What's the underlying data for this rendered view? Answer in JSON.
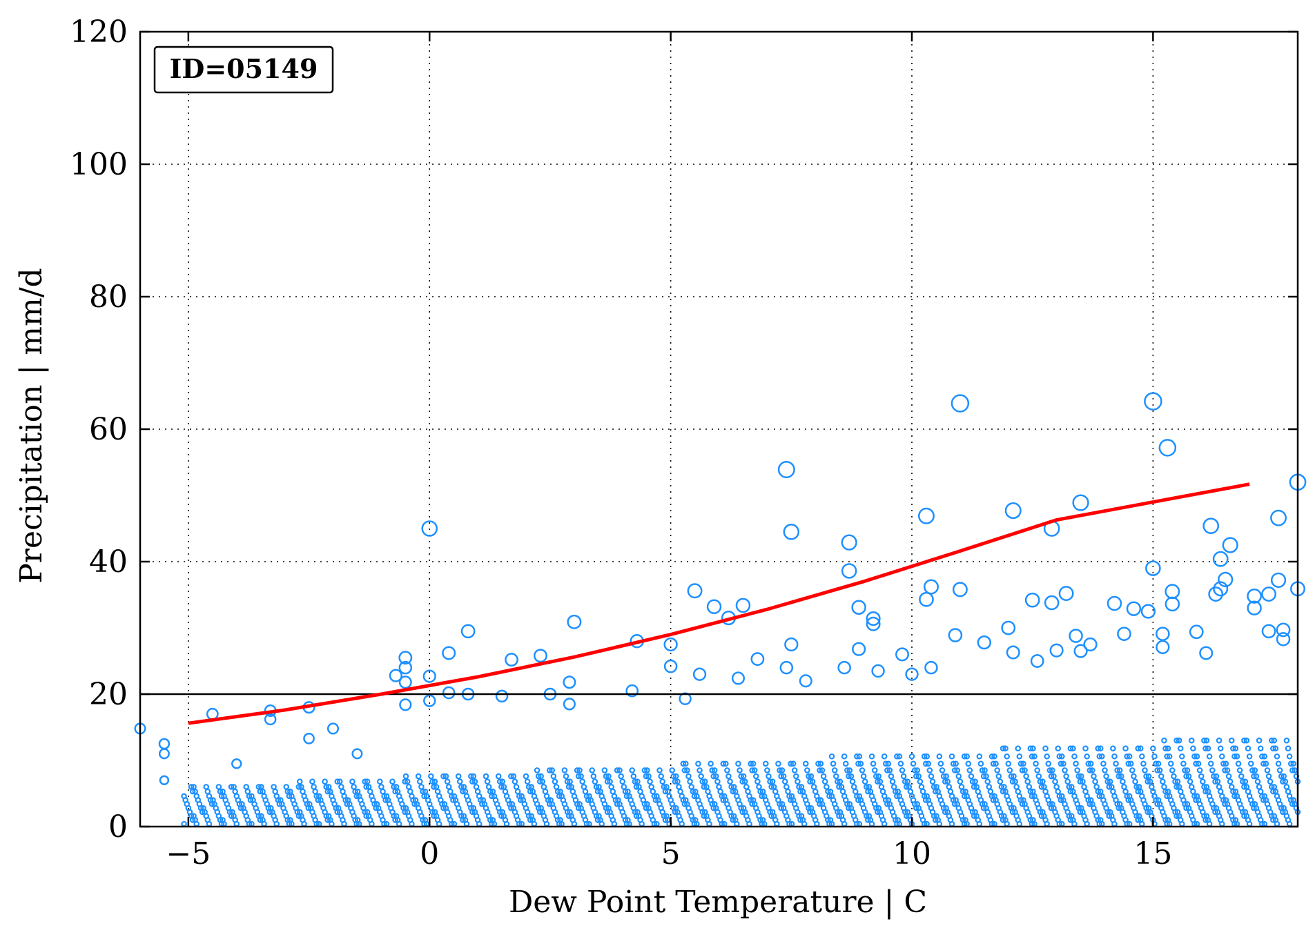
{
  "chart_data": {
    "type": "scatter",
    "annotation": "ID=05149",
    "xlabel": "Dew Point Temperature | C",
    "ylabel": "Precipitation | mm/d",
    "xlim": [
      -6,
      18
    ],
    "ylim": [
      0,
      120
    ],
    "xticks": [
      -5,
      0,
      5,
      10,
      15
    ],
    "yticks": [
      0,
      20,
      40,
      60,
      80,
      100,
      120
    ],
    "grid": true,
    "threshold": 20,
    "marker_color": "#1e90ff",
    "trend_color": "#ff0000",
    "trend_line": {
      "x": [
        -5,
        -3,
        -1,
        1,
        3,
        5,
        7,
        9,
        11,
        13,
        15,
        17
      ],
      "y": [
        15.6,
        17.6,
        20.0,
        22.6,
        25.6,
        29.0,
        32.8,
        37.0,
        41.6,
        46.3,
        49.0,
        51.7
      ]
    },
    "points": [
      {
        "x": -6.0,
        "y": 14.8
      },
      {
        "x": -5.5,
        "y": 12.5
      },
      {
        "x": -5.5,
        "y": 11.0
      },
      {
        "x": -5.5,
        "y": 7.0
      },
      {
        "x": -4.5,
        "y": 17.0
      },
      {
        "x": -4.0,
        "y": 9.5
      },
      {
        "x": -3.3,
        "y": 17.5
      },
      {
        "x": -3.3,
        "y": 16.2
      },
      {
        "x": -2.5,
        "y": 18.0
      },
      {
        "x": -2.5,
        "y": 13.3
      },
      {
        "x": -2.0,
        "y": 14.8
      },
      {
        "x": -1.5,
        "y": 11.0
      },
      {
        "x": -0.7,
        "y": 22.8
      },
      {
        "x": -0.5,
        "y": 25.5
      },
      {
        "x": -0.5,
        "y": 24.0
      },
      {
        "x": -0.5,
        "y": 21.8
      },
      {
        "x": -0.5,
        "y": 18.4
      },
      {
        "x": 0.0,
        "y": 45.0
      },
      {
        "x": 0.0,
        "y": 22.7
      },
      {
        "x": 0.0,
        "y": 19.0
      },
      {
        "x": 0.4,
        "y": 26.2
      },
      {
        "x": 0.4,
        "y": 20.2
      },
      {
        "x": 0.8,
        "y": 29.5
      },
      {
        "x": 0.8,
        "y": 20.0
      },
      {
        "x": 1.5,
        "y": 19.7
      },
      {
        "x": 1.7,
        "y": 25.2
      },
      {
        "x": 2.3,
        "y": 25.8
      },
      {
        "x": 2.5,
        "y": 20.0
      },
      {
        "x": 2.9,
        "y": 21.8
      },
      {
        "x": 2.9,
        "y": 18.5
      },
      {
        "x": 3.0,
        "y": 30.9
      },
      {
        "x": 4.2,
        "y": 20.5
      },
      {
        "x": 4.3,
        "y": 28.0
      },
      {
        "x": 5.0,
        "y": 27.5
      },
      {
        "x": 5.0,
        "y": 24.2
      },
      {
        "x": 5.3,
        "y": 19.3
      },
      {
        "x": 5.5,
        "y": 35.6
      },
      {
        "x": 5.6,
        "y": 23.0
      },
      {
        "x": 5.9,
        "y": 33.2
      },
      {
        "x": 6.2,
        "y": 31.5
      },
      {
        "x": 6.5,
        "y": 33.4
      },
      {
        "x": 6.4,
        "y": 22.4
      },
      {
        "x": 6.8,
        "y": 25.3
      },
      {
        "x": 7.4,
        "y": 53.9
      },
      {
        "x": 7.5,
        "y": 44.5
      },
      {
        "x": 7.5,
        "y": 27.5
      },
      {
        "x": 7.4,
        "y": 24.0
      },
      {
        "x": 7.8,
        "y": 22.0
      },
      {
        "x": 8.7,
        "y": 42.9
      },
      {
        "x": 8.7,
        "y": 38.6
      },
      {
        "x": 8.9,
        "y": 33.1
      },
      {
        "x": 9.2,
        "y": 31.4
      },
      {
        "x": 9.2,
        "y": 30.6
      },
      {
        "x": 8.9,
        "y": 26.8
      },
      {
        "x": 8.6,
        "y": 24.0
      },
      {
        "x": 9.3,
        "y": 23.5
      },
      {
        "x": 9.8,
        "y": 26.0
      },
      {
        "x": 10.0,
        "y": 23.0
      },
      {
        "x": 10.3,
        "y": 46.9
      },
      {
        "x": 10.4,
        "y": 36.2
      },
      {
        "x": 10.3,
        "y": 34.3
      },
      {
        "x": 10.4,
        "y": 24.0
      },
      {
        "x": 11.0,
        "y": 63.9
      },
      {
        "x": 11.0,
        "y": 35.8
      },
      {
        "x": 10.9,
        "y": 28.9
      },
      {
        "x": 11.5,
        "y": 27.8
      },
      {
        "x": 12.1,
        "y": 47.7
      },
      {
        "x": 12.0,
        "y": 30.0
      },
      {
        "x": 12.1,
        "y": 26.3
      },
      {
        "x": 12.5,
        "y": 34.2
      },
      {
        "x": 12.6,
        "y": 25.0
      },
      {
        "x": 12.9,
        "y": 45.0
      },
      {
        "x": 12.9,
        "y": 33.8
      },
      {
        "x": 13.2,
        "y": 35.2
      },
      {
        "x": 13.0,
        "y": 26.6
      },
      {
        "x": 13.5,
        "y": 48.9
      },
      {
        "x": 13.4,
        "y": 28.8
      },
      {
        "x": 13.5,
        "y": 26.5
      },
      {
        "x": 13.7,
        "y": 27.5
      },
      {
        "x": 14.2,
        "y": 33.7
      },
      {
        "x": 14.6,
        "y": 32.9
      },
      {
        "x": 14.4,
        "y": 29.1
      },
      {
        "x": 14.9,
        "y": 32.5
      },
      {
        "x": 15.0,
        "y": 39.0
      },
      {
        "x": 15.0,
        "y": 64.2
      },
      {
        "x": 15.3,
        "y": 57.2
      },
      {
        "x": 15.2,
        "y": 29.1
      },
      {
        "x": 15.2,
        "y": 27.1
      },
      {
        "x": 15.4,
        "y": 35.5
      },
      {
        "x": 15.4,
        "y": 33.6
      },
      {
        "x": 15.9,
        "y": 29.4
      },
      {
        "x": 16.2,
        "y": 45.4
      },
      {
        "x": 16.4,
        "y": 40.4
      },
      {
        "x": 16.6,
        "y": 42.5
      },
      {
        "x": 16.5,
        "y": 37.3
      },
      {
        "x": 16.4,
        "y": 35.9
      },
      {
        "x": 16.3,
        "y": 35.1
      },
      {
        "x": 16.1,
        "y": 26.2
      },
      {
        "x": 17.1,
        "y": 34.8
      },
      {
        "x": 17.4,
        "y": 35.1
      },
      {
        "x": 17.1,
        "y": 33.0
      },
      {
        "x": 17.6,
        "y": 46.6
      },
      {
        "x": 17.6,
        "y": 37.2
      },
      {
        "x": 17.4,
        "y": 29.5
      },
      {
        "x": 17.7,
        "y": 29.7
      },
      {
        "x": 17.7,
        "y": 28.3
      },
      {
        "x": 18.0,
        "y": 52.0
      },
      {
        "x": 18.0,
        "y": 35.9
      }
    ],
    "dense_cloud": {
      "x_start": -5.0,
      "x_end": 18.0,
      "x_step": 0.2,
      "rows": [
        0.4,
        1.0,
        1.6,
        2.2,
        2.8,
        3.4,
        4.0,
        4.6,
        5.3,
        6.0,
        6.8,
        7.6,
        8.5,
        9.5,
        10.6,
        11.8,
        13.0,
        14.3,
        15.6,
        17.0
      ]
    }
  }
}
